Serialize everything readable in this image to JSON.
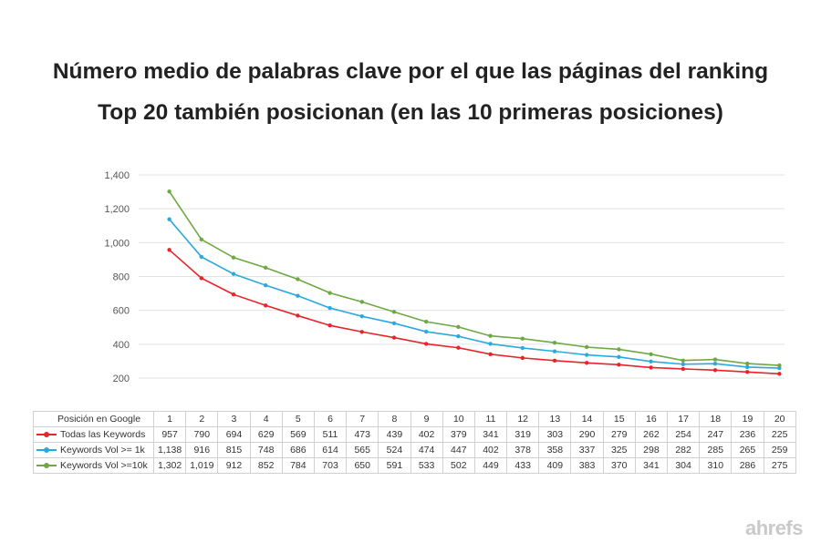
{
  "title_line1": "Número medio de palabras clave por el que las páginas del ranking",
  "title_line2": "Top 20 también posicionan (en las 10 primeras posiciones)",
  "watermark": "ahrefs",
  "chart_data": {
    "type": "line",
    "title": "Número medio de palabras clave por el que las páginas del ranking Top 20 también posicionan (en las 10 primeras posiciones)",
    "x_header": "Posición en Google",
    "x": [
      1,
      2,
      3,
      4,
      5,
      6,
      7,
      8,
      9,
      10,
      11,
      12,
      13,
      14,
      15,
      16,
      17,
      18,
      19,
      20
    ],
    "ylim": [
      200,
      1400
    ],
    "yticks": [
      200,
      400,
      600,
      800,
      1000,
      1200,
      1400
    ],
    "ytick_labels": [
      "200",
      "400",
      "600",
      "800",
      "1,000",
      "1,200",
      "1,400"
    ],
    "grid": true,
    "legend": "data-table",
    "series": [
      {
        "name": "Todas las Keywords",
        "color": "#e8242a",
        "values": [
          957,
          790,
          694,
          629,
          569,
          511,
          473,
          439,
          402,
          379,
          341,
          319,
          303,
          290,
          279,
          262,
          254,
          247,
          236,
          225
        ],
        "labels": [
          "957",
          "790",
          "694",
          "629",
          "569",
          "511",
          "473",
          "439",
          "402",
          "379",
          "341",
          "319",
          "303",
          "290",
          "279",
          "262",
          "254",
          "247",
          "236",
          "225"
        ]
      },
      {
        "name": "Keywords Vol >= 1k",
        "color": "#2aa9e0",
        "values": [
          1138,
          916,
          815,
          748,
          686,
          614,
          565,
          524,
          474,
          447,
          402,
          378,
          358,
          337,
          325,
          298,
          282,
          285,
          265,
          259
        ],
        "labels": [
          "1,138",
          "916",
          "815",
          "748",
          "686",
          "614",
          "565",
          "524",
          "474",
          "447",
          "402",
          "378",
          "358",
          "337",
          "325",
          "298",
          "282",
          "285",
          "265",
          "259"
        ]
      },
      {
        "name": "Keywords Vol >=10k",
        "color": "#6ea843",
        "values": [
          1302,
          1019,
          912,
          852,
          784,
          703,
          650,
          591,
          533,
          502,
          449,
          433,
          409,
          383,
          370,
          341,
          304,
          310,
          286,
          275
        ],
        "labels": [
          "1,302",
          "1,019",
          "912",
          "852",
          "784",
          "703",
          "650",
          "591",
          "533",
          "502",
          "449",
          "433",
          "409",
          "383",
          "370",
          "341",
          "304",
          "310",
          "286",
          "275"
        ]
      }
    ]
  }
}
